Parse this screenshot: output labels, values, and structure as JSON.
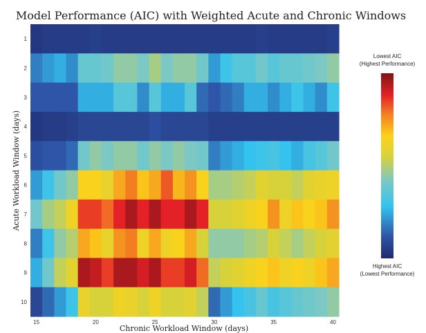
{
  "chart_data": {
    "type": "heatmap",
    "title": "Model Performance (AIC) with Weighted Acute and Chronic Windows",
    "xlabel": "Chronic Workload Window (days)",
    "ylabel": "Acute Workload Window (days)",
    "x": [
      15,
      16,
      17,
      18,
      19,
      20,
      21,
      22,
      23,
      24,
      25,
      26,
      27,
      28,
      29,
      30,
      31,
      32,
      33,
      34,
      35,
      36,
      37,
      38,
      39,
      40
    ],
    "y": [
      1,
      2,
      3,
      4,
      5,
      6,
      7,
      8,
      9,
      10
    ],
    "x_ticks": [
      15,
      20,
      25,
      30,
      35,
      40
    ],
    "y_ticks": [
      1,
      2,
      3,
      4,
      5,
      6,
      7,
      8,
      9,
      10
    ],
    "colorbar": {
      "top_label": [
        "Lowest AIC",
        "(Highest Performance)"
      ],
      "bottom_label": [
        "Highest AIC",
        "(Lowest Performance)"
      ]
    },
    "value_scale": "0 = highest AIC (dark blue), 1 = lowest AIC (dark red)",
    "values": [
      [
        0.04,
        0.05,
        0.05,
        0.05,
        0.05,
        0.06,
        0.05,
        0.05,
        0.05,
        0.05,
        0.05,
        0.05,
        0.05,
        0.05,
        0.05,
        0.05,
        0.05,
        0.05,
        0.05,
        0.06,
        0.05,
        0.05,
        0.05,
        0.05,
        0.05,
        0.06
      ],
      [
        0.18,
        0.22,
        0.25,
        0.2,
        0.38,
        0.38,
        0.4,
        0.45,
        0.45,
        0.42,
        0.48,
        0.42,
        0.45,
        0.45,
        0.4,
        0.22,
        0.3,
        0.35,
        0.35,
        0.4,
        0.35,
        0.38,
        0.38,
        0.4,
        0.42,
        0.45
      ],
      [
        0.12,
        0.12,
        0.12,
        0.12,
        0.25,
        0.25,
        0.25,
        0.35,
        0.35,
        0.2,
        0.35,
        0.25,
        0.25,
        0.35,
        0.15,
        0.12,
        0.15,
        0.18,
        0.25,
        0.25,
        0.2,
        0.25,
        0.3,
        0.25,
        0.2,
        0.3
      ],
      [
        0.04,
        0.05,
        0.05,
        0.06,
        0.08,
        0.08,
        0.08,
        0.08,
        0.08,
        0.08,
        0.1,
        0.08,
        0.08,
        0.08,
        0.08,
        0.06,
        0.06,
        0.06,
        0.06,
        0.06,
        0.06,
        0.06,
        0.06,
        0.06,
        0.06,
        0.06
      ],
      [
        0.1,
        0.12,
        0.12,
        0.15,
        0.4,
        0.45,
        0.42,
        0.45,
        0.45,
        0.4,
        0.45,
        0.42,
        0.45,
        0.42,
        0.4,
        0.18,
        0.22,
        0.25,
        0.28,
        0.3,
        0.32,
        0.28,
        0.25,
        0.32,
        0.35,
        0.4
      ],
      [
        0.22,
        0.3,
        0.4,
        0.45,
        0.65,
        0.65,
        0.6,
        0.72,
        0.78,
        0.68,
        0.72,
        0.82,
        0.7,
        0.75,
        0.65,
        0.48,
        0.48,
        0.5,
        0.52,
        0.58,
        0.55,
        0.55,
        0.52,
        0.58,
        0.6,
        0.62
      ],
      [
        0.4,
        0.48,
        0.52,
        0.62,
        0.85,
        0.85,
        0.8,
        0.88,
        0.95,
        0.88,
        0.95,
        0.88,
        0.88,
        0.95,
        0.88,
        0.55,
        0.55,
        0.58,
        0.62,
        0.65,
        0.75,
        0.62,
        0.68,
        0.65,
        0.68,
        0.75
      ],
      [
        0.18,
        0.3,
        0.45,
        0.5,
        0.72,
        0.68,
        0.6,
        0.75,
        0.78,
        0.62,
        0.72,
        0.62,
        0.65,
        0.72,
        0.55,
        0.45,
        0.45,
        0.45,
        0.48,
        0.5,
        0.55,
        0.52,
        0.48,
        0.52,
        0.55,
        0.58
      ],
      [
        0.25,
        0.4,
        0.52,
        0.58,
        0.95,
        0.92,
        0.85,
        0.95,
        0.95,
        0.9,
        0.95,
        0.85,
        0.85,
        0.9,
        0.8,
        0.52,
        0.55,
        0.58,
        0.62,
        0.65,
        0.68,
        0.62,
        0.65,
        0.62,
        0.68,
        0.72
      ],
      [
        0.08,
        0.15,
        0.22,
        0.3,
        0.6,
        0.55,
        0.55,
        0.62,
        0.6,
        0.55,
        0.62,
        0.55,
        0.55,
        0.58,
        0.52,
        0.15,
        0.22,
        0.28,
        0.32,
        0.38,
        0.32,
        0.35,
        0.38,
        0.4,
        0.42,
        0.45
      ]
    ]
  }
}
